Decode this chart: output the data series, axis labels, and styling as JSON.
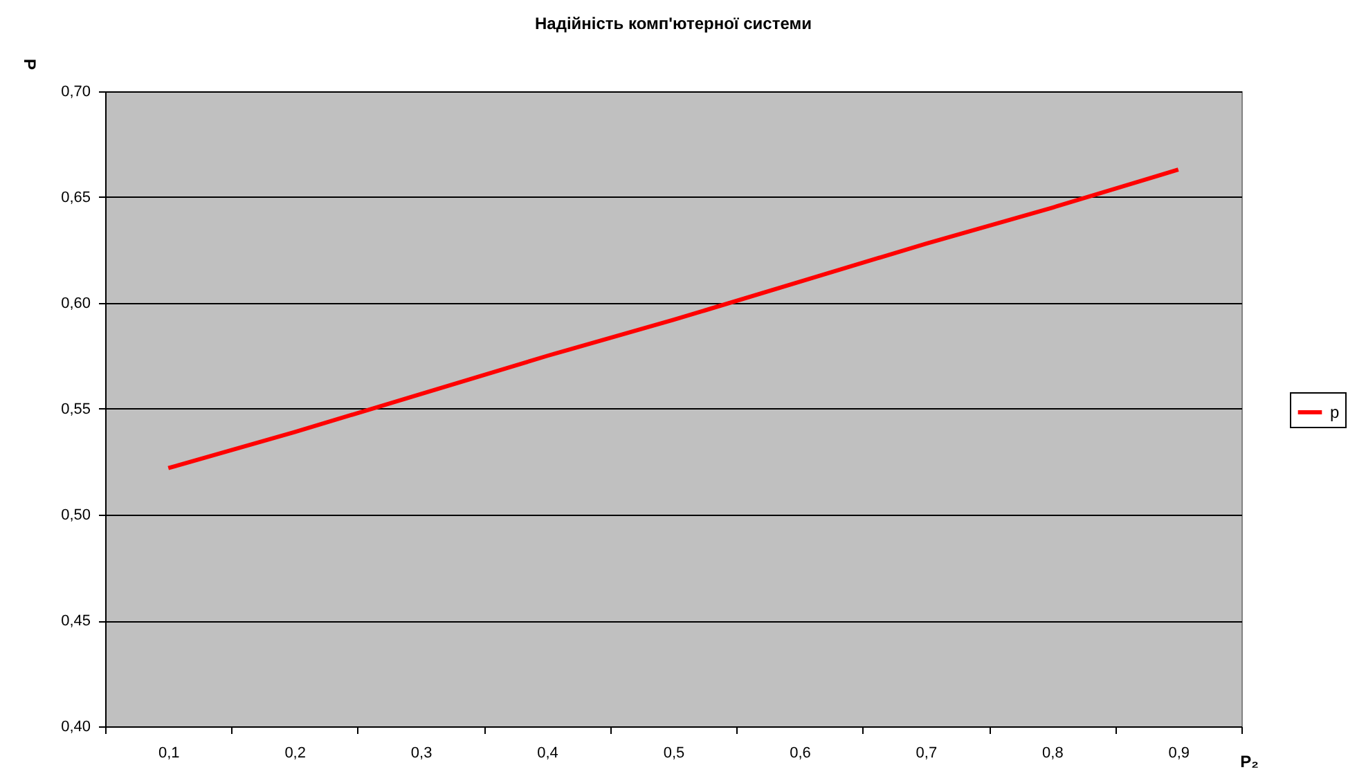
{
  "chart_data": {
    "type": "line",
    "title": "Надійність комп'ютерної системи",
    "xlabel": "P₂",
    "ylabel": "P",
    "categories": [
      "0,1",
      "0,2",
      "0,3",
      "0,4",
      "0,5",
      "0,6",
      "0,7",
      "0,8",
      "0,9"
    ],
    "series": [
      {
        "name": "p",
        "color": "#ff0000",
        "values": [
          0.522,
          0.539,
          0.557,
          0.575,
          0.592,
          0.61,
          0.628,
          0.645,
          0.663
        ]
      }
    ],
    "ylim": [
      0.4,
      0.7
    ],
    "yticks": [
      {
        "value": 0.4,
        "label": "0,40"
      },
      {
        "value": 0.45,
        "label": "0,45"
      },
      {
        "value": 0.5,
        "label": "0,50"
      },
      {
        "value": 0.55,
        "label": "0,55"
      },
      {
        "value": 0.6,
        "label": "0,60"
      },
      {
        "value": 0.65,
        "label": "0,65"
      },
      {
        "value": 0.7,
        "label": "0,70"
      }
    ],
    "grid": "y",
    "legend": "right",
    "marker": "none",
    "line_style": "solid"
  }
}
